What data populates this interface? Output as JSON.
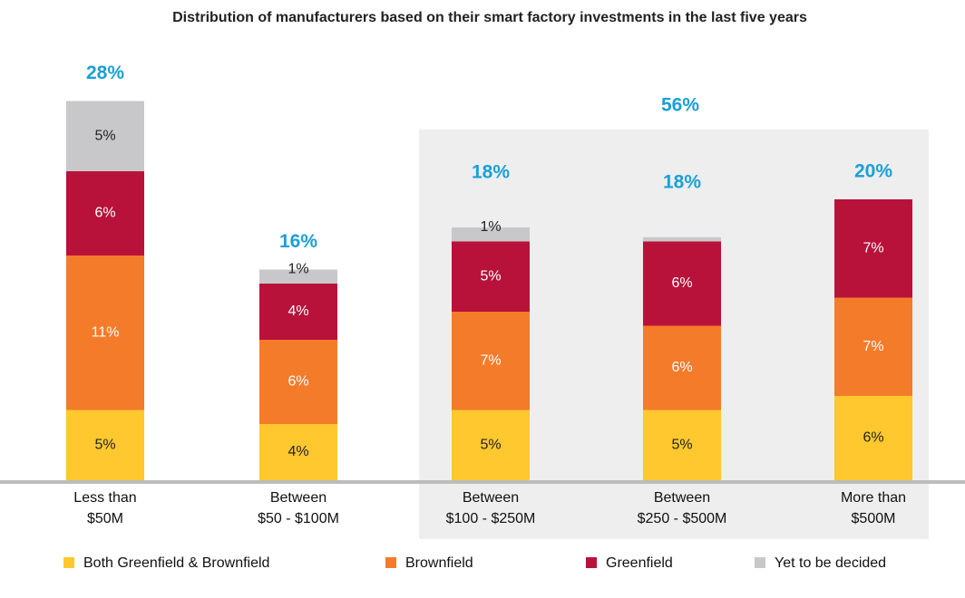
{
  "chart_data": {
    "type": "stacked_bar",
    "title": "Distribution of manufacturers based on their smart factory investments in the last five years",
    "categories": [
      "Less than\n$50M",
      "Between\n$50 - $100M",
      "Between\n$100 - $250M",
      "Between\n$250 - $500M",
      "More than\n$500M"
    ],
    "series": [
      {
        "name": "Both Greenfield & Brownfield",
        "color": "#ffc82e",
        "label_color": "#222222",
        "values": [
          5,
          4,
          5,
          5,
          6
        ],
        "value_labels": [
          "5%",
          "4%",
          "5%",
          "5%",
          "6%"
        ]
      },
      {
        "name": "Brownfield",
        "color": "#f47b2a",
        "label_color": "#ffffff",
        "values": [
          11,
          6,
          7,
          6,
          7
        ],
        "value_labels": [
          "11%",
          "6%",
          "7%",
          "6%",
          "7%"
        ]
      },
      {
        "name": "Greenfield",
        "color": "#b8123a",
        "label_color": "#ffffff",
        "values": [
          6,
          4,
          5,
          6,
          7
        ],
        "value_labels": [
          "6%",
          "4%",
          "5%",
          "6%",
          "7%"
        ]
      },
      {
        "name": "Yet to be decided",
        "color": "#c8c8ca",
        "label_color": "#222222",
        "values": [
          5,
          1,
          1,
          0.3,
          null
        ],
        "value_labels": [
          "5%",
          "1%",
          "1%",
          null,
          null
        ]
      }
    ],
    "totals": [
      28,
      16,
      18,
      18,
      20
    ],
    "total_labels": [
      "28%",
      "16%",
      "18%",
      "18%",
      "20%"
    ],
    "group_total": 56,
    "group_total_label": "56%",
    "total_color": "#1aa0d8"
  }
}
